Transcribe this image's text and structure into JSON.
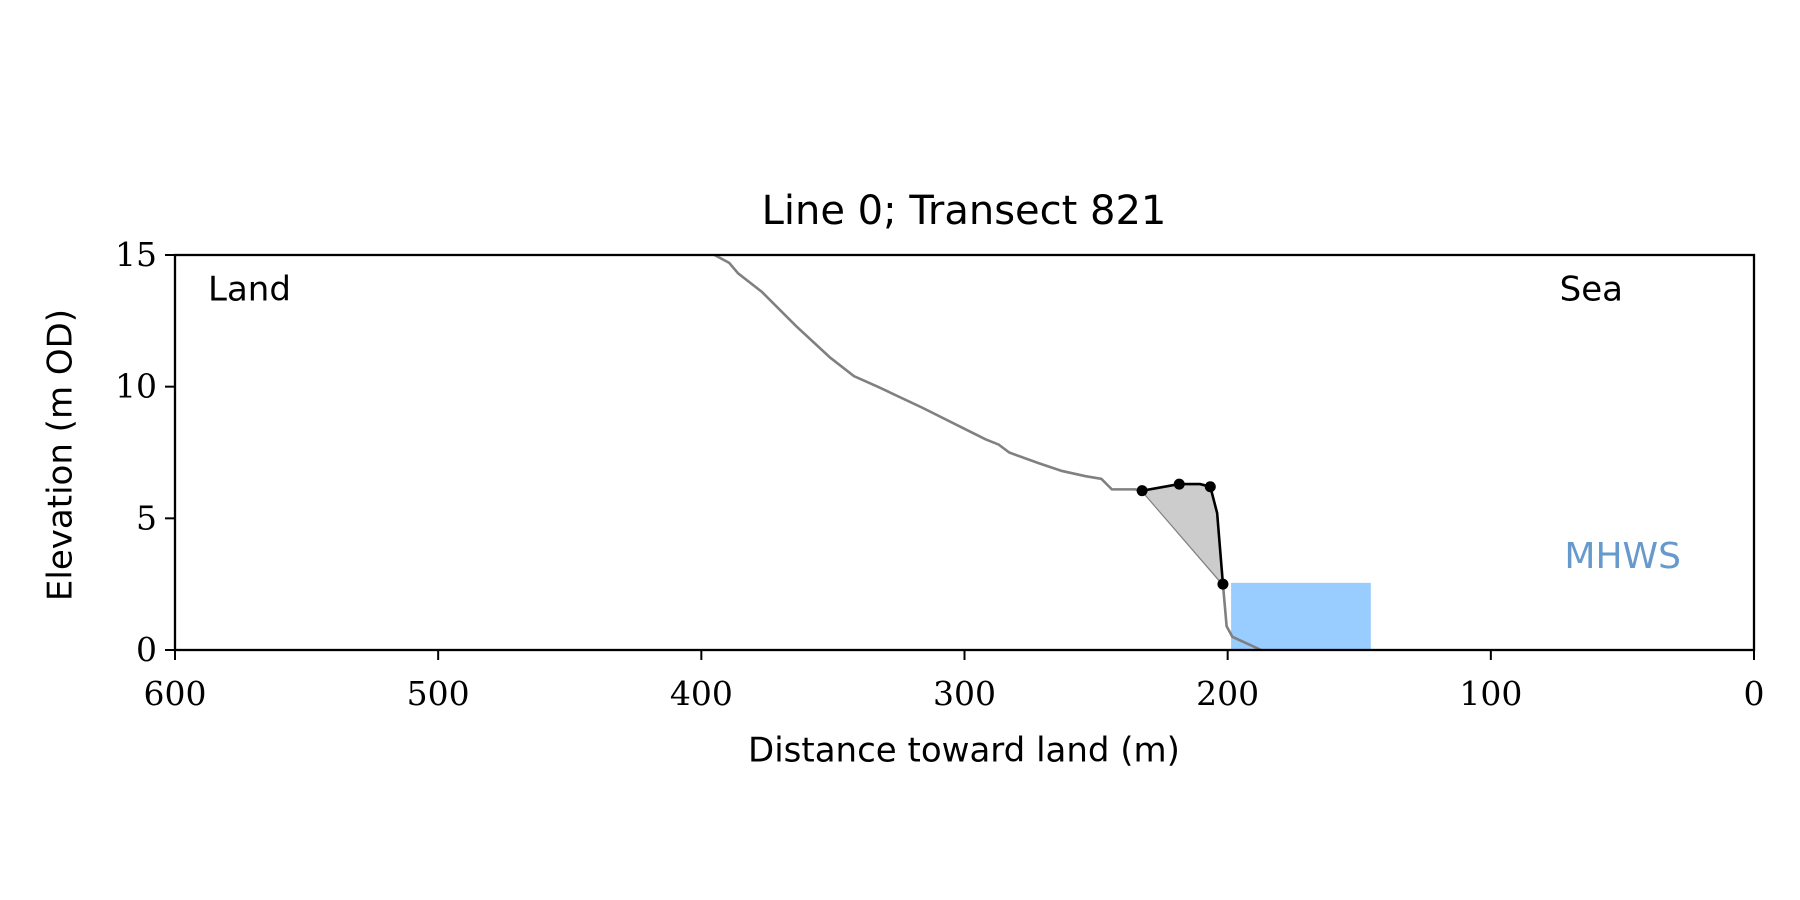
{
  "chart_data": {
    "type": "line",
    "title": "Line 0; Transect 821",
    "xlabel": "Distance toward land (m)",
    "ylabel": "Elevation (m OD)",
    "xlim": [
      600,
      0
    ],
    "ylim": [
      0,
      15
    ],
    "xticks": [
      600,
      500,
      400,
      300,
      200,
      100,
      0
    ],
    "yticks": [
      0,
      5,
      10,
      15
    ],
    "annotations": [
      "Land",
      "Sea"
    ],
    "series": [
      {
        "color": "#808080",
        "x": [
          395,
          389.4,
          386,
          377,
          364,
          351,
          342,
          333,
          316,
          298,
          292,
          287,
          283,
          272,
          263,
          254,
          248,
          244,
          235,
          232,
          201.8,
          200.4,
          198.2,
          187.3
        ],
        "values": [
          15.0,
          14.7,
          14.3,
          13.6,
          12.3,
          11.1,
          10.4,
          10.0,
          9.2,
          8.3,
          8.0,
          7.8,
          7.5,
          7.1,
          6.8,
          6.6,
          6.5,
          6.1,
          6.1,
          6.0,
          2.5,
          0.9,
          0.5,
          0
        ]
      },
      {
        "color": "#000000",
        "fill": "#cccccc",
        "x": [
          232.5,
          218.4,
          210.5,
          206.6,
          204,
          201.8
        ],
        "values": [
          6.05,
          6.3,
          6.3,
          6.2,
          5.2,
          2.5
        ],
        "markers": [
          0,
          1,
          3,
          5
        ]
      }
    ],
    "mhws": {
      "label": "MHWS",
      "x": [
        198.7,
        145.6
      ],
      "level": 2.55,
      "color": "#99ccff",
      "label_color": "#6699cc"
    }
  }
}
